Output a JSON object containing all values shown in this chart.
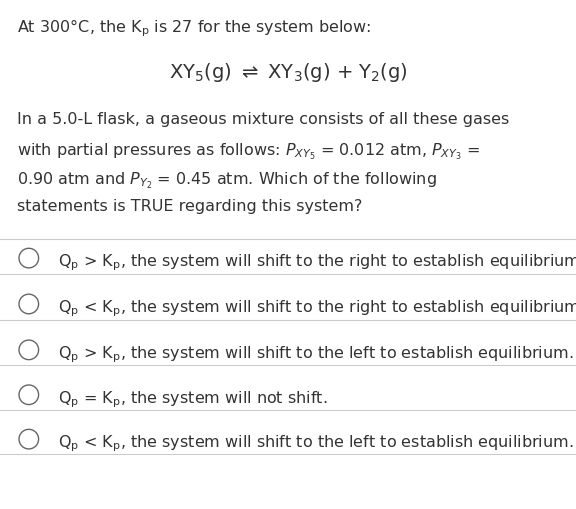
{
  "bg_color": "#ffffff",
  "text_color": "#333333",
  "divider_color": "#cccccc",
  "circle_color": "#666666",
  "figsize": [
    5.76,
    5.1
  ],
  "dpi": 100,
  "title_fs": 11.5,
  "eq_fs": 14,
  "para_fs": 11.5,
  "opt_fs": 11.5
}
